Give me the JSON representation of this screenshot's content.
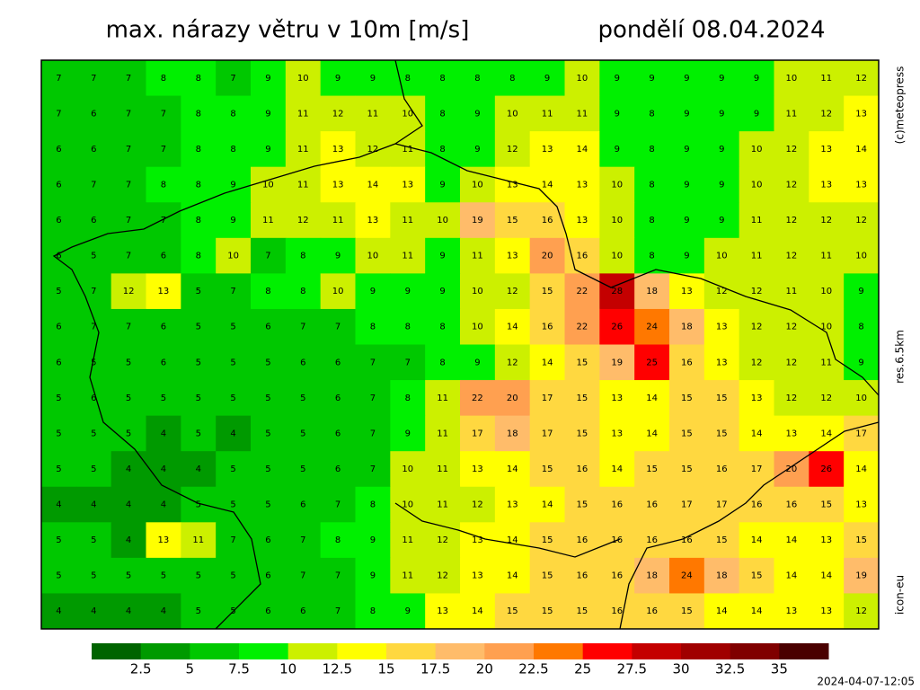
{
  "header": {
    "title": "max. nárazy větru v 10m [m/s]",
    "date": "pondělí 08.04.2024"
  },
  "side_labels": [
    "(c)meteopress",
    "res.6.5km",
    "icon-eu"
  ],
  "timestamp": "2024-04-07-12:05",
  "map": {
    "values": [
      [
        7,
        7,
        7,
        8,
        8,
        7,
        9,
        10,
        9,
        9,
        8,
        8,
        8,
        8,
        9,
        10,
        9,
        9,
        9,
        9,
        9,
        10,
        11,
        12
      ],
      [
        7,
        6,
        7,
        7,
        8,
        8,
        9,
        11,
        12,
        11,
        10,
        8,
        9,
        10,
        11,
        11,
        9,
        8,
        9,
        9,
        9,
        11,
        12,
        13
      ],
      [
        6,
        6,
        7,
        7,
        8,
        8,
        9,
        11,
        13,
        12,
        11,
        8,
        9,
        12,
        13,
        14,
        9,
        8,
        9,
        9,
        10,
        12,
        13,
        14
      ],
      [
        6,
        7,
        7,
        8,
        8,
        9,
        10,
        11,
        13,
        14,
        13,
        9,
        10,
        13,
        14,
        13,
        10,
        8,
        9,
        9,
        10,
        12,
        13,
        13
      ],
      [
        6,
        6,
        7,
        7,
        8,
        9,
        11,
        12,
        11,
        13,
        11,
        10,
        19,
        15,
        16,
        13,
        10,
        8,
        9,
        9,
        11,
        12,
        12,
        12
      ],
      [
        6,
        5,
        7,
        6,
        8,
        10,
        7,
        8,
        9,
        10,
        11,
        9,
        11,
        13,
        20,
        16,
        10,
        8,
        9,
        10,
        11,
        12,
        11,
        10
      ],
      [
        5,
        7,
        12,
        13,
        5,
        7,
        8,
        8,
        10,
        9,
        9,
        9,
        10,
        12,
        15,
        22,
        28,
        18,
        13,
        12,
        12,
        11,
        10,
        9
      ],
      [
        6,
        7,
        7,
        6,
        5,
        5,
        6,
        7,
        7,
        8,
        8,
        8,
        10,
        14,
        16,
        22,
        26,
        24,
        18,
        13,
        12,
        12,
        10,
        8
      ],
      [
        6,
        5,
        5,
        6,
        5,
        5,
        5,
        6,
        6,
        7,
        7,
        8,
        9,
        12,
        14,
        15,
        19,
        25,
        16,
        13,
        12,
        12,
        11,
        9
      ],
      [
        5,
        6,
        5,
        5,
        5,
        5,
        5,
        5,
        6,
        7,
        8,
        11,
        22,
        20,
        17,
        15,
        13,
        14,
        15,
        15,
        13,
        12,
        12,
        10
      ],
      [
        5,
        5,
        5,
        4,
        5,
        4,
        5,
        5,
        6,
        7,
        9,
        11,
        17,
        18,
        17,
        15,
        13,
        14,
        15,
        15,
        14,
        13,
        14,
        17
      ],
      [
        5,
        5,
        4,
        4,
        4,
        5,
        5,
        5,
        6,
        7,
        10,
        11,
        13,
        14,
        15,
        16,
        14,
        15,
        15,
        16,
        17,
        20,
        26,
        14
      ],
      [
        4,
        4,
        4,
        4,
        5,
        5,
        5,
        6,
        7,
        8,
        10,
        11,
        12,
        13,
        14,
        15,
        16,
        16,
        17,
        17,
        16,
        16,
        15,
        13
      ],
      [
        5,
        5,
        4,
        13,
        11,
        7,
        6,
        7,
        8,
        9,
        11,
        12,
        13,
        14,
        15,
        16,
        16,
        16,
        16,
        15,
        14,
        14,
        13,
        15
      ],
      [
        5,
        5,
        5,
        5,
        5,
        5,
        6,
        7,
        7,
        9,
        11,
        12,
        13,
        14,
        15,
        16,
        16,
        18,
        24,
        18,
        15,
        14,
        14,
        19
      ],
      [
        4,
        4,
        4,
        4,
        5,
        5,
        6,
        6,
        7,
        8,
        9,
        13,
        14,
        15,
        15,
        15,
        16,
        16,
        15,
        14,
        14,
        13,
        13,
        12
      ]
    ]
  },
  "legend": {
    "colors": [
      "#006400",
      "#009a00",
      "#00c800",
      "#00f000",
      "#ccf000",
      "#ffff00",
      "#ffd840",
      "#ffbc6a",
      "#ffa050",
      "#ff7800",
      "#ff0000",
      "#c40000",
      "#a00000",
      "#800000",
      "#4a0000"
    ],
    "ticks": [
      2.5,
      5,
      7.5,
      10,
      12.5,
      15,
      17.5,
      20,
      22.5,
      25,
      27.5,
      30,
      32.5,
      35
    ]
  }
}
